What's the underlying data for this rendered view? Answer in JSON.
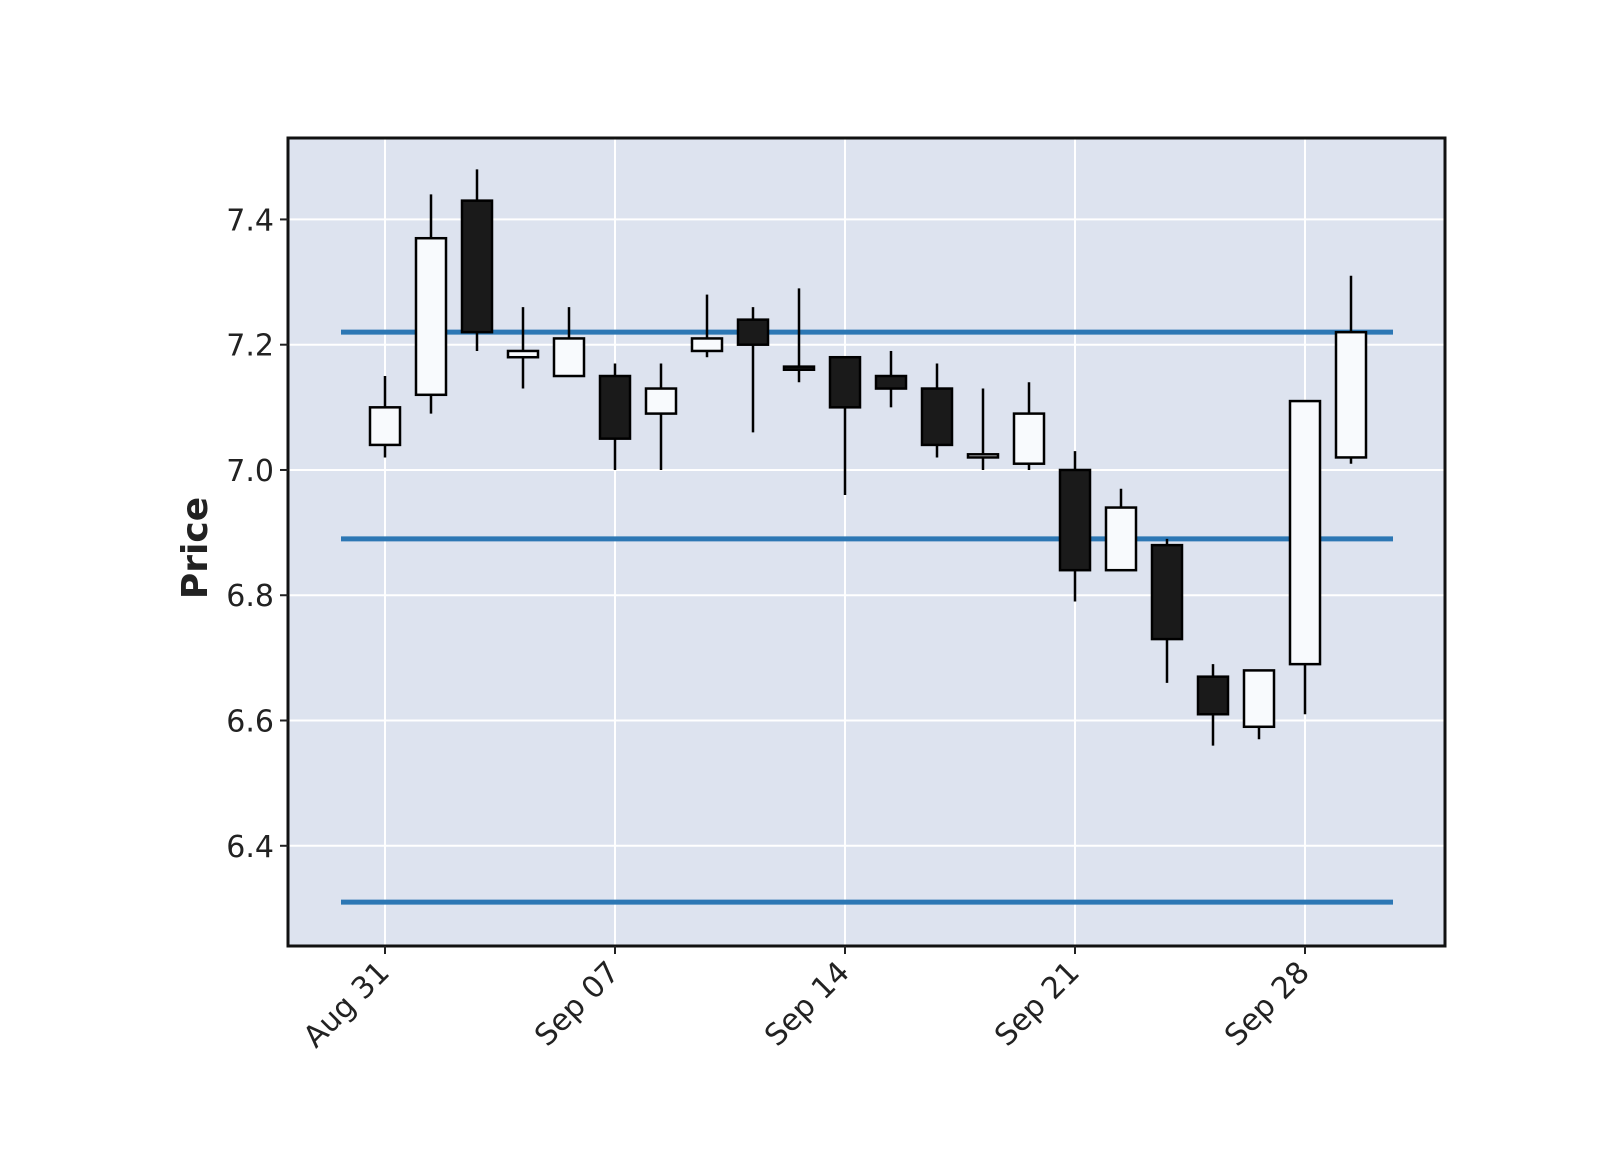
{
  "chart_data": {
    "type": "candlestick",
    "title": "",
    "xlabel": "",
    "ylabel": "Price",
    "ylim": [
      6.24,
      7.53
    ],
    "yticks": [
      "6.4",
      "6.6",
      "6.8",
      "7.0",
      "7.2",
      "7.4"
    ],
    "xticks": [
      {
        "label": "Aug 31",
        "index": 0
      },
      {
        "label": "Sep 07",
        "index": 5
      },
      {
        "label": "Sep 14",
        "index": 10
      },
      {
        "label": "Sep 21",
        "index": 15
      },
      {
        "label": "Sep 28",
        "index": 20
      }
    ],
    "grid": true,
    "colors": {
      "background": "#dde3ef",
      "up_body": "#f8fafd",
      "down_body": "#1a1a1a",
      "edge": "#000000",
      "hline": "#2c77b4",
      "grid": "#ffffff"
    },
    "candles": [
      {
        "date": "Aug 31",
        "open": 7.04,
        "high": 7.15,
        "low": 7.02,
        "close": 7.1
      },
      {
        "date": "Sep 01",
        "open": 7.12,
        "high": 7.44,
        "low": 7.09,
        "close": 7.37
      },
      {
        "date": "Sep 02",
        "open": 7.43,
        "high": 7.48,
        "low": 7.19,
        "close": 7.22
      },
      {
        "date": "Sep 03",
        "open": 7.18,
        "high": 7.26,
        "low": 7.13,
        "close": 7.19
      },
      {
        "date": "Sep 04",
        "open": 7.15,
        "high": 7.26,
        "low": 7.15,
        "close": 7.21
      },
      {
        "date": "Sep 07",
        "open": 7.15,
        "high": 7.17,
        "low": 7.0,
        "close": 7.05
      },
      {
        "date": "Sep 08",
        "open": 7.09,
        "high": 7.17,
        "low": 7.0,
        "close": 7.13
      },
      {
        "date": "Sep 09",
        "open": 7.19,
        "high": 7.28,
        "low": 7.18,
        "close": 7.21
      },
      {
        "date": "Sep 10",
        "open": 7.24,
        "high": 7.26,
        "low": 7.06,
        "close": 7.2
      },
      {
        "date": "Sep 11",
        "open": 7.165,
        "high": 7.29,
        "low": 7.14,
        "close": 7.16
      },
      {
        "date": "Sep 14",
        "open": 7.18,
        "high": 7.18,
        "low": 6.96,
        "close": 7.1
      },
      {
        "date": "Sep 15",
        "open": 7.15,
        "high": 7.19,
        "low": 7.1,
        "close": 7.13
      },
      {
        "date": "Sep 16",
        "open": 7.13,
        "high": 7.17,
        "low": 7.02,
        "close": 7.04
      },
      {
        "date": "Sep 17",
        "open": 7.02,
        "high": 7.13,
        "low": 7.0,
        "close": 7.025
      },
      {
        "date": "Sep 18",
        "open": 7.01,
        "high": 7.14,
        "low": 7.0,
        "close": 7.09
      },
      {
        "date": "Sep 21",
        "open": 7.0,
        "high": 7.03,
        "low": 6.79,
        "close": 6.84
      },
      {
        "date": "Sep 22",
        "open": 6.84,
        "high": 6.97,
        "low": 6.84,
        "close": 6.94
      },
      {
        "date": "Sep 23",
        "open": 6.88,
        "high": 6.89,
        "low": 6.66,
        "close": 6.73
      },
      {
        "date": "Sep 24",
        "open": 6.67,
        "high": 6.69,
        "low": 6.56,
        "close": 6.61
      },
      {
        "date": "Sep 25",
        "open": 6.59,
        "high": 6.68,
        "low": 6.57,
        "close": 6.68
      },
      {
        "date": "Sep 28",
        "open": 6.69,
        "high": 7.11,
        "low": 6.61,
        "close": 7.11
      },
      {
        "date": "Sep 29",
        "open": 7.02,
        "high": 7.31,
        "low": 7.01,
        "close": 7.22
      }
    ],
    "hlines": [
      7.22,
      6.89,
      6.31
    ]
  }
}
